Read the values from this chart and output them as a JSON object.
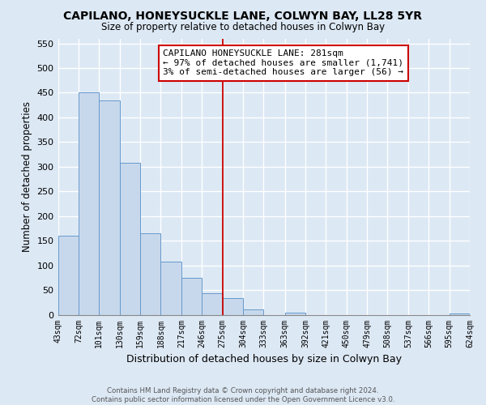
{
  "title": "CAPILANO, HONEYSUCKLE LANE, COLWYN BAY, LL28 5YR",
  "subtitle": "Size of property relative to detached houses in Colwyn Bay",
  "xlabel": "Distribution of detached houses by size in Colwyn Bay",
  "ylabel": "Number of detached properties",
  "bar_color": "#c8d8ec",
  "bar_edge_color": "#6699cc",
  "grid_color": "#c8d8ec",
  "bins": [
    43,
    72,
    101,
    130,
    159,
    188,
    217,
    246,
    275,
    304,
    333,
    363,
    392,
    421,
    450,
    479,
    508,
    537,
    566,
    595,
    624
  ],
  "values": [
    160,
    450,
    435,
    308,
    165,
    108,
    74,
    44,
    33,
    10,
    0,
    5,
    0,
    0,
    0,
    0,
    0,
    0,
    0,
    2
  ],
  "tick_labels": [
    "43sqm",
    "72sqm",
    "101sqm",
    "130sqm",
    "159sqm",
    "188sqm",
    "217sqm",
    "246sqm",
    "275sqm",
    "304sqm",
    "333sqm",
    "363sqm",
    "392sqm",
    "421sqm",
    "450sqm",
    "479sqm",
    "508sqm",
    "537sqm",
    "566sqm",
    "595sqm",
    "624sqm"
  ],
  "property_line_x": 275,
  "property_line_color": "#cc0000",
  "annotation_line1": "CAPILANO HONEYSUCKLE LANE: 281sqm",
  "annotation_line2": "← 97% of detached houses are smaller (1,741)",
  "annotation_line3": "3% of semi-detached houses are larger (56) →",
  "annotation_box_color": "#ffffff",
  "annotation_box_edge": "#cc0000",
  "footnote": "Contains HM Land Registry data © Crown copyright and database right 2024.\nContains public sector information licensed under the Open Government Licence v3.0.",
  "ylim": [
    0,
    560
  ],
  "yticks": [
    0,
    50,
    100,
    150,
    200,
    250,
    300,
    350,
    400,
    450,
    500,
    550
  ],
  "background_color": "#dce8f4"
}
